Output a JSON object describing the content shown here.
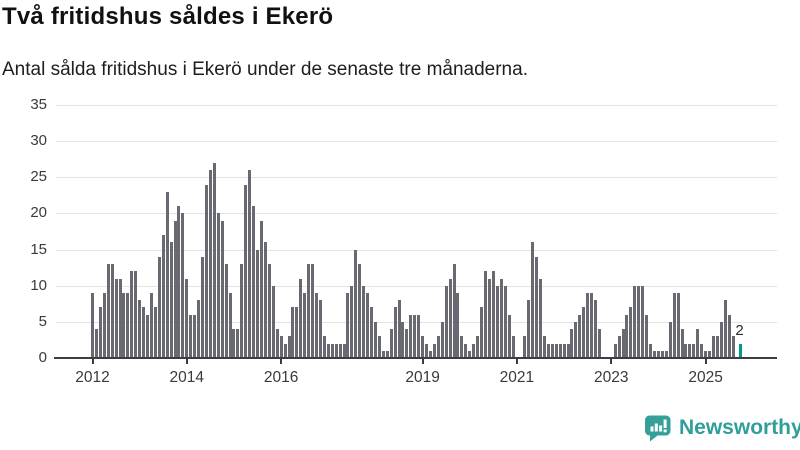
{
  "header": {
    "title": "Två fritidshus såldes i Ekerö",
    "subtitle": "Antal sålda fritidshus i Ekerö under de senaste tre månaderna."
  },
  "chart_data": {
    "type": "bar",
    "title": "Två fritidshus såldes i Ekerö",
    "subtitle": "Antal sålda fritidshus i Ekerö under de senaste tre månaderna.",
    "frequency": "monthly",
    "x_start": "2012-01",
    "x_end": "2025-10",
    "values": [
      9,
      4,
      7,
      9,
      13,
      13,
      11,
      11,
      9,
      9,
      12,
      12,
      8,
      7,
      6,
      9,
      7,
      14,
      17,
      23,
      16,
      19,
      21,
      20,
      11,
      6,
      6,
      8,
      14,
      24,
      26,
      27,
      20,
      19,
      13,
      9,
      4,
      4,
      13,
      24,
      26,
      21,
      15,
      19,
      16,
      13,
      10,
      4,
      3,
      2,
      3,
      7,
      7,
      11,
      9,
      13,
      13,
      9,
      8,
      3,
      2,
      2,
      2,
      2,
      2,
      9,
      10,
      15,
      13,
      10,
      9,
      7,
      5,
      3,
      1,
      1,
      4,
      7,
      8,
      5,
      4,
      6,
      6,
      6,
      3,
      2,
      1,
      2,
      3,
      5,
      10,
      11,
      13,
      9,
      3,
      2,
      1,
      2,
      3,
      7,
      12,
      11,
      12,
      10,
      11,
      10,
      6,
      3,
      0,
      0,
      3,
      8,
      16,
      14,
      11,
      3,
      2,
      2,
      2,
      2,
      2,
      2,
      4,
      5,
      6,
      7,
      9,
      9,
      8,
      4,
      0,
      0,
      0,
      2,
      3,
      4,
      6,
      7,
      10,
      10,
      10,
      6,
      2,
      1,
      1,
      1,
      1,
      5,
      9,
      9,
      4,
      2,
      2,
      2,
      4,
      2,
      1,
      1,
      3,
      3,
      5,
      8,
      6,
      3,
      0,
      2
    ],
    "highlight": {
      "index": 165,
      "value": 2,
      "label": "2"
    },
    "ylim": [
      0,
      35
    ],
    "yticks": [
      0,
      5,
      10,
      15,
      20,
      25,
      30,
      35
    ],
    "xticks": [
      {
        "label": "2012",
        "month_index": 0
      },
      {
        "label": "2014",
        "month_index": 24
      },
      {
        "label": "2016",
        "month_index": 48
      },
      {
        "label": "2019",
        "month_index": 84
      },
      {
        "label": "2021",
        "month_index": 108
      },
      {
        "label": "2023",
        "month_index": 132
      },
      {
        "label": "2025",
        "month_index": 156
      }
    ],
    "grid": true,
    "legend": "none",
    "colors": {
      "bar": "#696971",
      "highlight": "#009a94",
      "grid": "#e4e4e4",
      "axis": "#3c3c41",
      "tick_text": "#3a3a3a",
      "annotation": "#2b2b2b"
    }
  },
  "footer": {
    "brand": "Newsworthy",
    "brand_color": "#2f9f99",
    "logo_icon": "newsworthy-speech-bubble-chart-icon"
  }
}
